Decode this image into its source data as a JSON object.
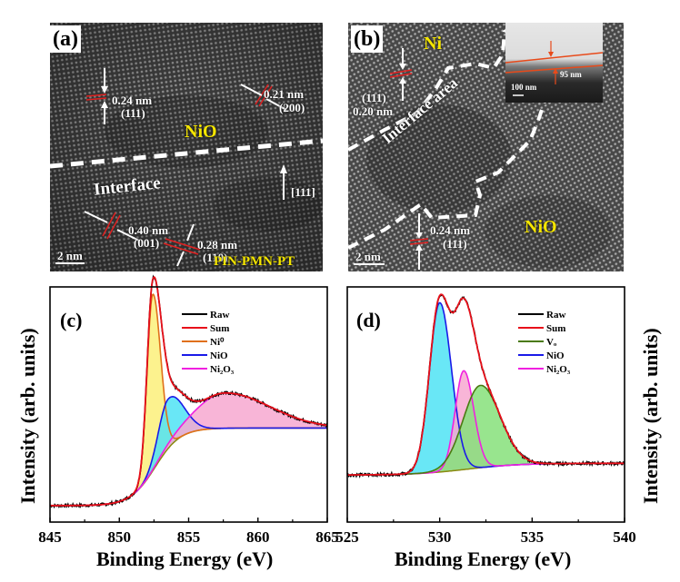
{
  "figure": {
    "panels": {
      "a": {
        "label": "(a)",
        "phase_top": "NiO",
        "phase_bottom": "PIN-PMN-PT",
        "interface_label": "Interface",
        "direction_label": "[111]",
        "scale_bar": "2 nm",
        "annotations": [
          {
            "spacing": "0.24 nm",
            "plane": "(111)"
          },
          {
            "spacing": "0.21 nm",
            "plane": "(200)"
          },
          {
            "spacing": "0.40 nm",
            "plane": "(001)"
          },
          {
            "spacing": "0.28 nm",
            "plane": "(110)"
          }
        ]
      },
      "b": {
        "label": "(b)",
        "phase_top": "Ni",
        "phase_bottom": "NiO",
        "interface_label": "Interface area",
        "scale_bar": "2 nm",
        "annotations": [
          {
            "spacing": "0.20 nm",
            "plane": "(111)"
          },
          {
            "spacing": "0.24 nm",
            "plane": "(111)"
          }
        ],
        "inset": {
          "thickness": "95 nm",
          "scale_bar": "100 nm"
        }
      }
    },
    "colors": {
      "raw": "#000000",
      "sum": "#e8101a",
      "ni0": "#e0701a",
      "nio": "#1a1ae8",
      "ni2o3": "#f020e0",
      "vo": "#4a7a10",
      "background": "#8a8a10",
      "fill_ni0": "#fbf07a",
      "fill_nio": "#4fe3f5",
      "fill_ni2o3": "#f7a8d0",
      "fill_vo": "#86e07a",
      "phase_text": "#f5e600",
      "inset_line": "#e84a1a"
    }
  },
  "chart_data": [
    {
      "panel": "c",
      "type": "line",
      "label": "(c)",
      "title": "",
      "xlabel": "Binding Energy (eV)",
      "ylabel": "Intensity (arb. units)",
      "xlim": [
        845,
        865
      ],
      "ylim": [
        0,
        1
      ],
      "xticks": [
        845,
        850,
        855,
        860,
        865
      ],
      "grid": false,
      "legend_position": "top-right",
      "legend": [
        "Raw",
        "Sum",
        "Ni⁰",
        "NiO",
        "Ni₂O₃"
      ],
      "baseline": {
        "low": 0.07,
        "high": 0.4,
        "step_center": 852.6,
        "step_width": 0.9
      },
      "components": [
        {
          "name": "Ni⁰",
          "key": "ni0",
          "center": 852.4,
          "height": 0.75,
          "fwhm": 0.95,
          "fill": "fill_ni0"
        },
        {
          "name": "NiO",
          "key": "nio",
          "center": 853.5,
          "height": 0.21,
          "fwhm": 1.6,
          "fill": "fill_nio"
        },
        {
          "name": "Ni₂O₃",
          "key": "ni2o3",
          "center": 857.6,
          "height": 0.15,
          "fwhm": 4.8,
          "fill": "fill_ni2o3"
        }
      ],
      "series": [
        {
          "name": "Raw",
          "key": "raw"
        },
        {
          "name": "Sum",
          "key": "sum"
        }
      ]
    },
    {
      "panel": "d",
      "type": "line",
      "label": "(d)",
      "title": "",
      "xlabel": "Binding Energy (eV)",
      "ylabel": "Intensity (arb. units)",
      "xlim": [
        525,
        540
      ],
      "ylim": [
        0,
        1
      ],
      "xticks": [
        525,
        530,
        535,
        540
      ],
      "grid": false,
      "legend_position": "top-right",
      "legend": [
        "Raw",
        "Sum",
        "V_O",
        "NiO",
        "Ni₂O₃"
      ],
      "baseline": {
        "low": 0.2,
        "high": 0.25,
        "step_center": 531.5,
        "step_width": 1.4
      },
      "components": [
        {
          "name": "NiO",
          "key": "nio",
          "center": 530.0,
          "height": 0.72,
          "fwhm": 1.3,
          "fill": "fill_nio"
        },
        {
          "name": "Ni₂O₃",
          "key": "ni2o3",
          "center": 531.3,
          "height": 0.42,
          "fwhm": 1.1,
          "fill": "fill_ni2o3"
        },
        {
          "name": "V_O",
          "key": "vo",
          "center": 532.2,
          "height": 0.35,
          "fwhm": 2.2,
          "fill": "fill_vo"
        }
      ],
      "series": [
        {
          "name": "Raw",
          "key": "raw"
        },
        {
          "name": "Sum",
          "key": "sum"
        }
      ]
    }
  ]
}
